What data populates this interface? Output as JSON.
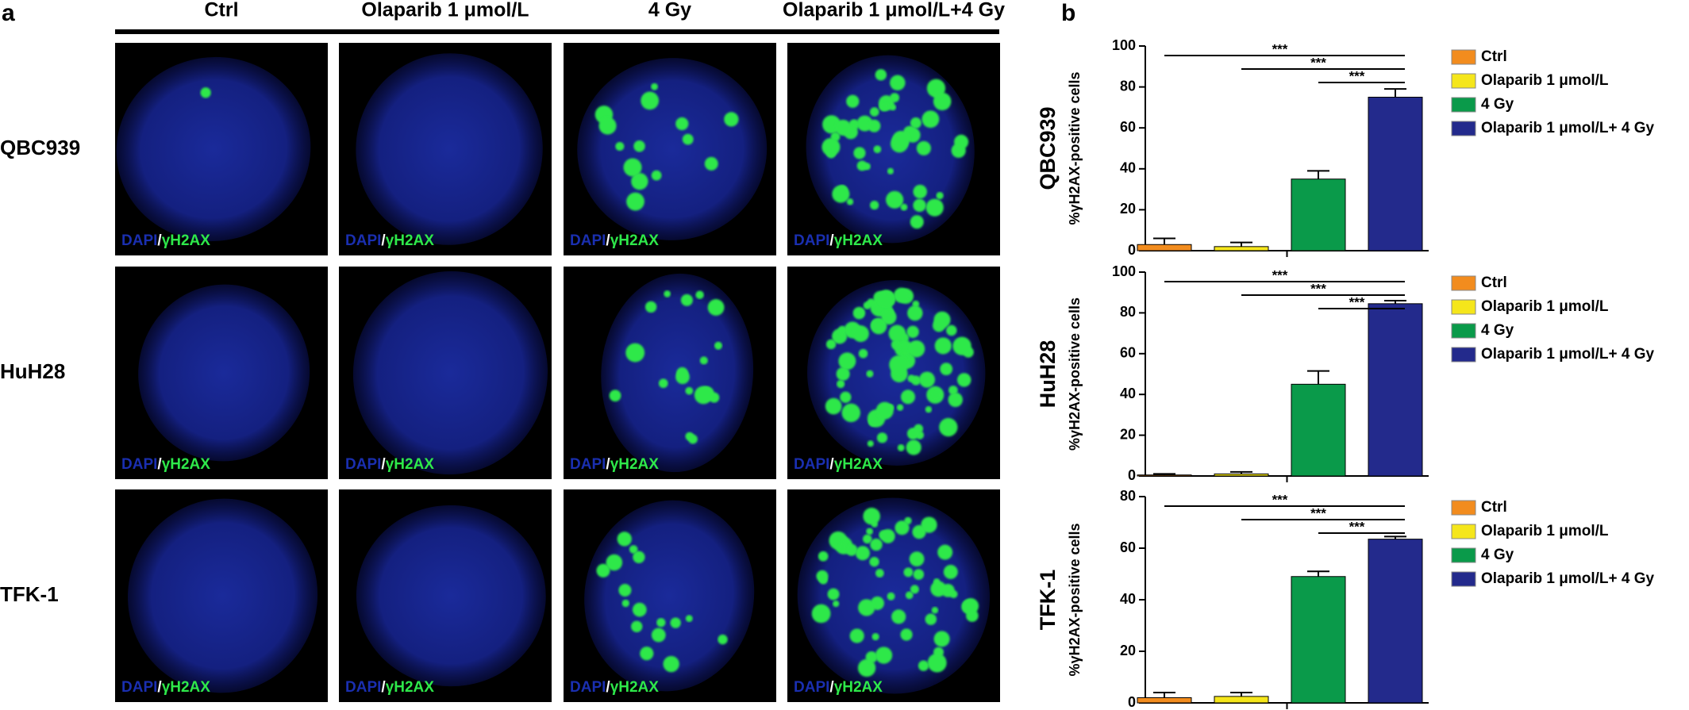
{
  "panel_labels": [
    "a",
    "b"
  ],
  "panel_a": {
    "columns": [
      "Ctrl",
      "Olaparib 1 μmol/L",
      "4 Gy",
      "Olaparib 1 μmol/L+4 Gy"
    ],
    "rows": [
      "QBC939",
      "HuH28",
      "TFK-1"
    ],
    "stain_label": [
      "DAPI",
      "/",
      "γH2AX"
    ]
  },
  "chart_data": [
    {
      "type": "bar",
      "title": "QBC939",
      "y_label": "%γH2AX-positive cells",
      "categories": [
        "Ctrl",
        "Olaparib 1 μmol/L",
        "4 Gy",
        "Olaparib 1 μmol/L+ 4 Gy"
      ],
      "values": [
        3,
        2,
        35,
        75
      ],
      "errors": [
        3,
        2,
        4,
        4
      ],
      "colors": [
        "#f28c1e",
        "#f5e61b",
        "#0a9a4a",
        "#232a8c"
      ],
      "ylim": [
        0,
        100
      ],
      "yticks": [
        0,
        20,
        40,
        60,
        80,
        100
      ],
      "significance": [
        "***",
        "***",
        "***"
      ]
    },
    {
      "type": "bar",
      "title": "HuH28",
      "y_label": "%γH2AX-positive cells",
      "categories": [
        "Ctrl",
        "Olaparib 1 μmol/L",
        "4 Gy",
        "Olaparib 1 μmol/L+ 4 Gy"
      ],
      "values": [
        0.5,
        1,
        45,
        84.5
      ],
      "errors": [
        0.5,
        1,
        6.5,
        1.5
      ],
      "colors": [
        "#f28c1e",
        "#f5e61b",
        "#0a9a4a",
        "#232a8c"
      ],
      "ylim": [
        0,
        100
      ],
      "yticks": [
        0,
        20,
        40,
        60,
        80,
        100
      ],
      "significance": [
        "***",
        "***",
        "***"
      ]
    },
    {
      "type": "bar",
      "title": "TFK-1",
      "y_label": "%γH2AX-positive cells",
      "categories": [
        "Ctrl",
        "Olaparib 1 μmol/L",
        "4 Gy",
        "Olaparib 1 μmol/L+ 4 Gy"
      ],
      "values": [
        2,
        2.5,
        49,
        63.5
      ],
      "errors": [
        2,
        1.5,
        2,
        1
      ],
      "colors": [
        "#f28c1e",
        "#f5e61b",
        "#0a9a4a",
        "#232a8c"
      ],
      "ylim": [
        0,
        80
      ],
      "yticks": [
        0,
        20,
        40,
        60,
        80
      ],
      "significance": [
        "***",
        "***",
        "***"
      ]
    }
  ]
}
